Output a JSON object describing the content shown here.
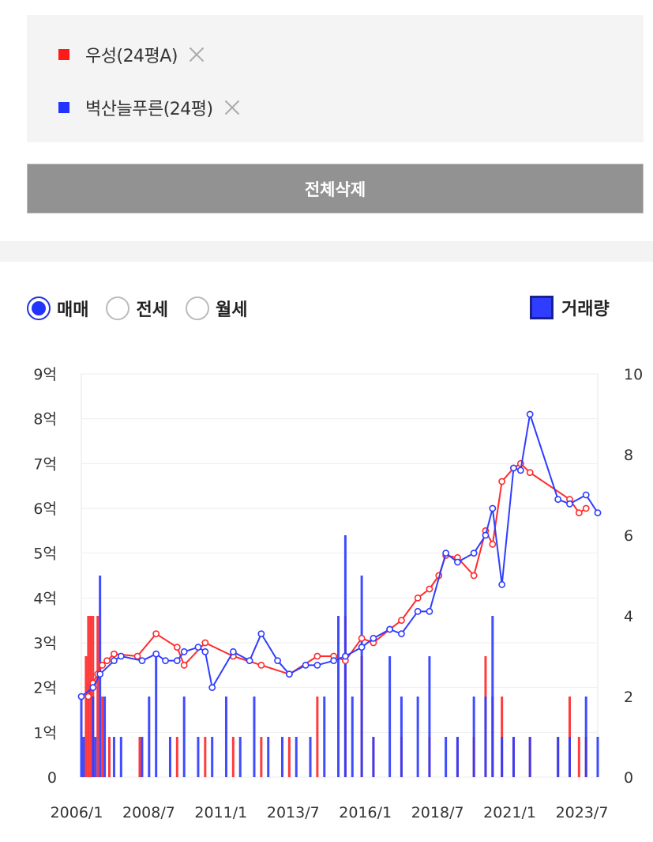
{
  "compare": {
    "items": [
      {
        "label": "우성(24평A)",
        "color": "#ff1a1a"
      },
      {
        "label": "벽산늘푸른(24평)",
        "color": "#2233ff"
      }
    ],
    "delete_all_label": "전체삭제"
  },
  "tabs": {
    "options": [
      {
        "label": "매매",
        "selected": true
      },
      {
        "label": "전세",
        "selected": false
      },
      {
        "label": "월세",
        "selected": false
      }
    ],
    "volume_label": "거래량",
    "volume_checked": true
  },
  "chart_data": {
    "type": "line",
    "x_tick_labels": [
      "2006/1",
      "2008/7",
      "2011/1",
      "2013/7",
      "2016/1",
      "2018/7",
      "2021/1",
      "2023/7"
    ],
    "x_range": [
      "2006-01",
      "2024-06"
    ],
    "y_left_ticks": [
      "0",
      "1억",
      "2억",
      "3억",
      "4억",
      "5억",
      "6억",
      "7억",
      "8억",
      "9억"
    ],
    "y_left_range": [
      0,
      9
    ],
    "y_left_unit": "억",
    "y_right_ticks": [
      "0",
      "2",
      "4",
      "6",
      "8",
      "10"
    ],
    "y_right_range": [
      0,
      10
    ],
    "grid": true,
    "price_series": [
      {
        "name": "우성(24평A)",
        "color": "#ff2a2a",
        "points": [
          [
            "2006-04",
            1.8
          ],
          [
            "2006-06",
            2.1
          ],
          [
            "2006-08",
            2.3
          ],
          [
            "2006-10",
            2.5
          ],
          [
            "2006-12",
            2.6
          ],
          [
            "2007-03",
            2.75
          ],
          [
            "2008-01",
            2.7
          ],
          [
            "2008-09",
            3.2
          ],
          [
            "2009-06",
            2.9
          ],
          [
            "2009-09",
            2.5
          ],
          [
            "2010-06",
            3.0
          ],
          [
            "2011-06",
            2.7
          ],
          [
            "2012-06",
            2.5
          ],
          [
            "2013-06",
            2.3
          ],
          [
            "2014-06",
            2.7
          ],
          [
            "2015-01",
            2.7
          ],
          [
            "2015-06",
            2.6
          ],
          [
            "2016-01",
            3.1
          ],
          [
            "2016-06",
            3.0
          ],
          [
            "2017-01",
            3.3
          ],
          [
            "2017-06",
            3.5
          ],
          [
            "2018-01",
            4.0
          ],
          [
            "2018-06",
            4.2
          ],
          [
            "2018-10",
            4.5
          ],
          [
            "2019-01",
            4.95
          ],
          [
            "2019-06",
            4.9
          ],
          [
            "2020-01",
            4.5
          ],
          [
            "2020-06",
            5.5
          ],
          [
            "2020-09",
            5.2
          ],
          [
            "2021-01",
            6.6
          ],
          [
            "2021-06",
            6.9
          ],
          [
            "2021-09",
            7.0
          ],
          [
            "2022-01",
            6.8
          ],
          [
            "2023-06",
            6.2
          ],
          [
            "2023-10",
            5.9
          ],
          [
            "2024-01",
            6.0
          ]
        ]
      },
      {
        "name": "벽산늘푸른(24평)",
        "color": "#2f3dff",
        "points": [
          [
            "2006-01",
            1.8
          ],
          [
            "2006-06",
            2.0
          ],
          [
            "2006-09",
            2.3
          ],
          [
            "2007-03",
            2.6
          ],
          [
            "2007-06",
            2.7
          ],
          [
            "2008-03",
            2.6
          ],
          [
            "2008-09",
            2.75
          ],
          [
            "2009-01",
            2.6
          ],
          [
            "2009-06",
            2.6
          ],
          [
            "2009-09",
            2.8
          ],
          [
            "2010-03",
            2.9
          ],
          [
            "2010-06",
            2.8
          ],
          [
            "2010-09",
            2.0
          ],
          [
            "2011-06",
            2.8
          ],
          [
            "2012-01",
            2.6
          ],
          [
            "2012-06",
            3.2
          ],
          [
            "2013-01",
            2.6
          ],
          [
            "2013-06",
            2.3
          ],
          [
            "2014-01",
            2.5
          ],
          [
            "2014-06",
            2.5
          ],
          [
            "2015-01",
            2.6
          ],
          [
            "2015-06",
            2.7
          ],
          [
            "2016-01",
            2.9
          ],
          [
            "2016-06",
            3.1
          ],
          [
            "2017-01",
            3.3
          ],
          [
            "2017-06",
            3.2
          ],
          [
            "2018-01",
            3.7
          ],
          [
            "2018-06",
            3.7
          ],
          [
            "2019-01",
            5.0
          ],
          [
            "2019-06",
            4.8
          ],
          [
            "2020-01",
            5.0
          ],
          [
            "2020-06",
            5.4
          ],
          [
            "2020-09",
            6.0
          ],
          [
            "2021-01",
            4.3
          ],
          [
            "2021-06",
            6.9
          ],
          [
            "2021-09",
            6.85
          ],
          [
            "2022-01",
            8.1
          ],
          [
            "2023-01",
            6.2
          ],
          [
            "2023-06",
            6.1
          ],
          [
            "2024-01",
            6.3
          ],
          [
            "2024-06",
            5.9
          ]
        ]
      }
    ],
    "volume_series": [
      {
        "name": "우성(24평A)",
        "color": "#ff2a2a",
        "bars": [
          [
            "2006-03",
            3
          ],
          [
            "2006-04",
            4
          ],
          [
            "2006-05",
            4
          ],
          [
            "2006-06",
            4
          ],
          [
            "2006-08",
            4
          ],
          [
            "2006-10",
            2
          ],
          [
            "2007-01",
            1
          ],
          [
            "2008-02",
            1
          ],
          [
            "2009-06",
            1
          ],
          [
            "2010-06",
            1
          ],
          [
            "2011-06",
            1
          ],
          [
            "2012-06",
            1
          ],
          [
            "2013-06",
            1
          ],
          [
            "2014-06",
            2
          ],
          [
            "2015-06",
            4
          ],
          [
            "2016-01",
            3
          ],
          [
            "2016-06",
            1
          ],
          [
            "2017-06",
            1
          ],
          [
            "2018-06",
            1
          ],
          [
            "2019-06",
            1
          ],
          [
            "2020-01",
            1
          ],
          [
            "2020-06",
            3
          ],
          [
            "2020-09",
            2
          ],
          [
            "2021-01",
            2
          ],
          [
            "2021-06",
            1
          ],
          [
            "2022-01",
            1
          ],
          [
            "2023-01",
            1
          ],
          [
            "2023-06",
            2
          ],
          [
            "2023-10",
            1
          ],
          [
            "2024-01",
            1
          ]
        ]
      },
      {
        "name": "벽산늘푸른(24평)",
        "color": "#2f3dff",
        "bars": [
          [
            "2006-01",
            2
          ],
          [
            "2006-02",
            1
          ],
          [
            "2006-06",
            2
          ],
          [
            "2006-07",
            1
          ],
          [
            "2006-09",
            5
          ],
          [
            "2006-11",
            2
          ],
          [
            "2007-03",
            1
          ],
          [
            "2007-06",
            1
          ],
          [
            "2008-03",
            1
          ],
          [
            "2008-06",
            2
          ],
          [
            "2008-09",
            3
          ],
          [
            "2009-03",
            1
          ],
          [
            "2009-09",
            2
          ],
          [
            "2010-03",
            1
          ],
          [
            "2010-09",
            1
          ],
          [
            "2011-03",
            2
          ],
          [
            "2011-09",
            1
          ],
          [
            "2012-03",
            2
          ],
          [
            "2012-09",
            1
          ],
          [
            "2013-03",
            1
          ],
          [
            "2013-09",
            1
          ],
          [
            "2014-03",
            1
          ],
          [
            "2014-09",
            2
          ],
          [
            "2015-03",
            4
          ],
          [
            "2015-06",
            6
          ],
          [
            "2015-09",
            2
          ],
          [
            "2016-01",
            5
          ],
          [
            "2016-06",
            1
          ],
          [
            "2017-01",
            3
          ],
          [
            "2017-06",
            2
          ],
          [
            "2018-01",
            2
          ],
          [
            "2018-06",
            3
          ],
          [
            "2019-01",
            1
          ],
          [
            "2019-06",
            1
          ],
          [
            "2020-01",
            2
          ],
          [
            "2020-06",
            2
          ],
          [
            "2020-09",
            4
          ],
          [
            "2021-01",
            1
          ],
          [
            "2021-06",
            1
          ],
          [
            "2022-01",
            1
          ],
          [
            "2023-01",
            1
          ],
          [
            "2023-06",
            1
          ],
          [
            "2024-01",
            2
          ],
          [
            "2024-06",
            1
          ]
        ]
      }
    ]
  }
}
